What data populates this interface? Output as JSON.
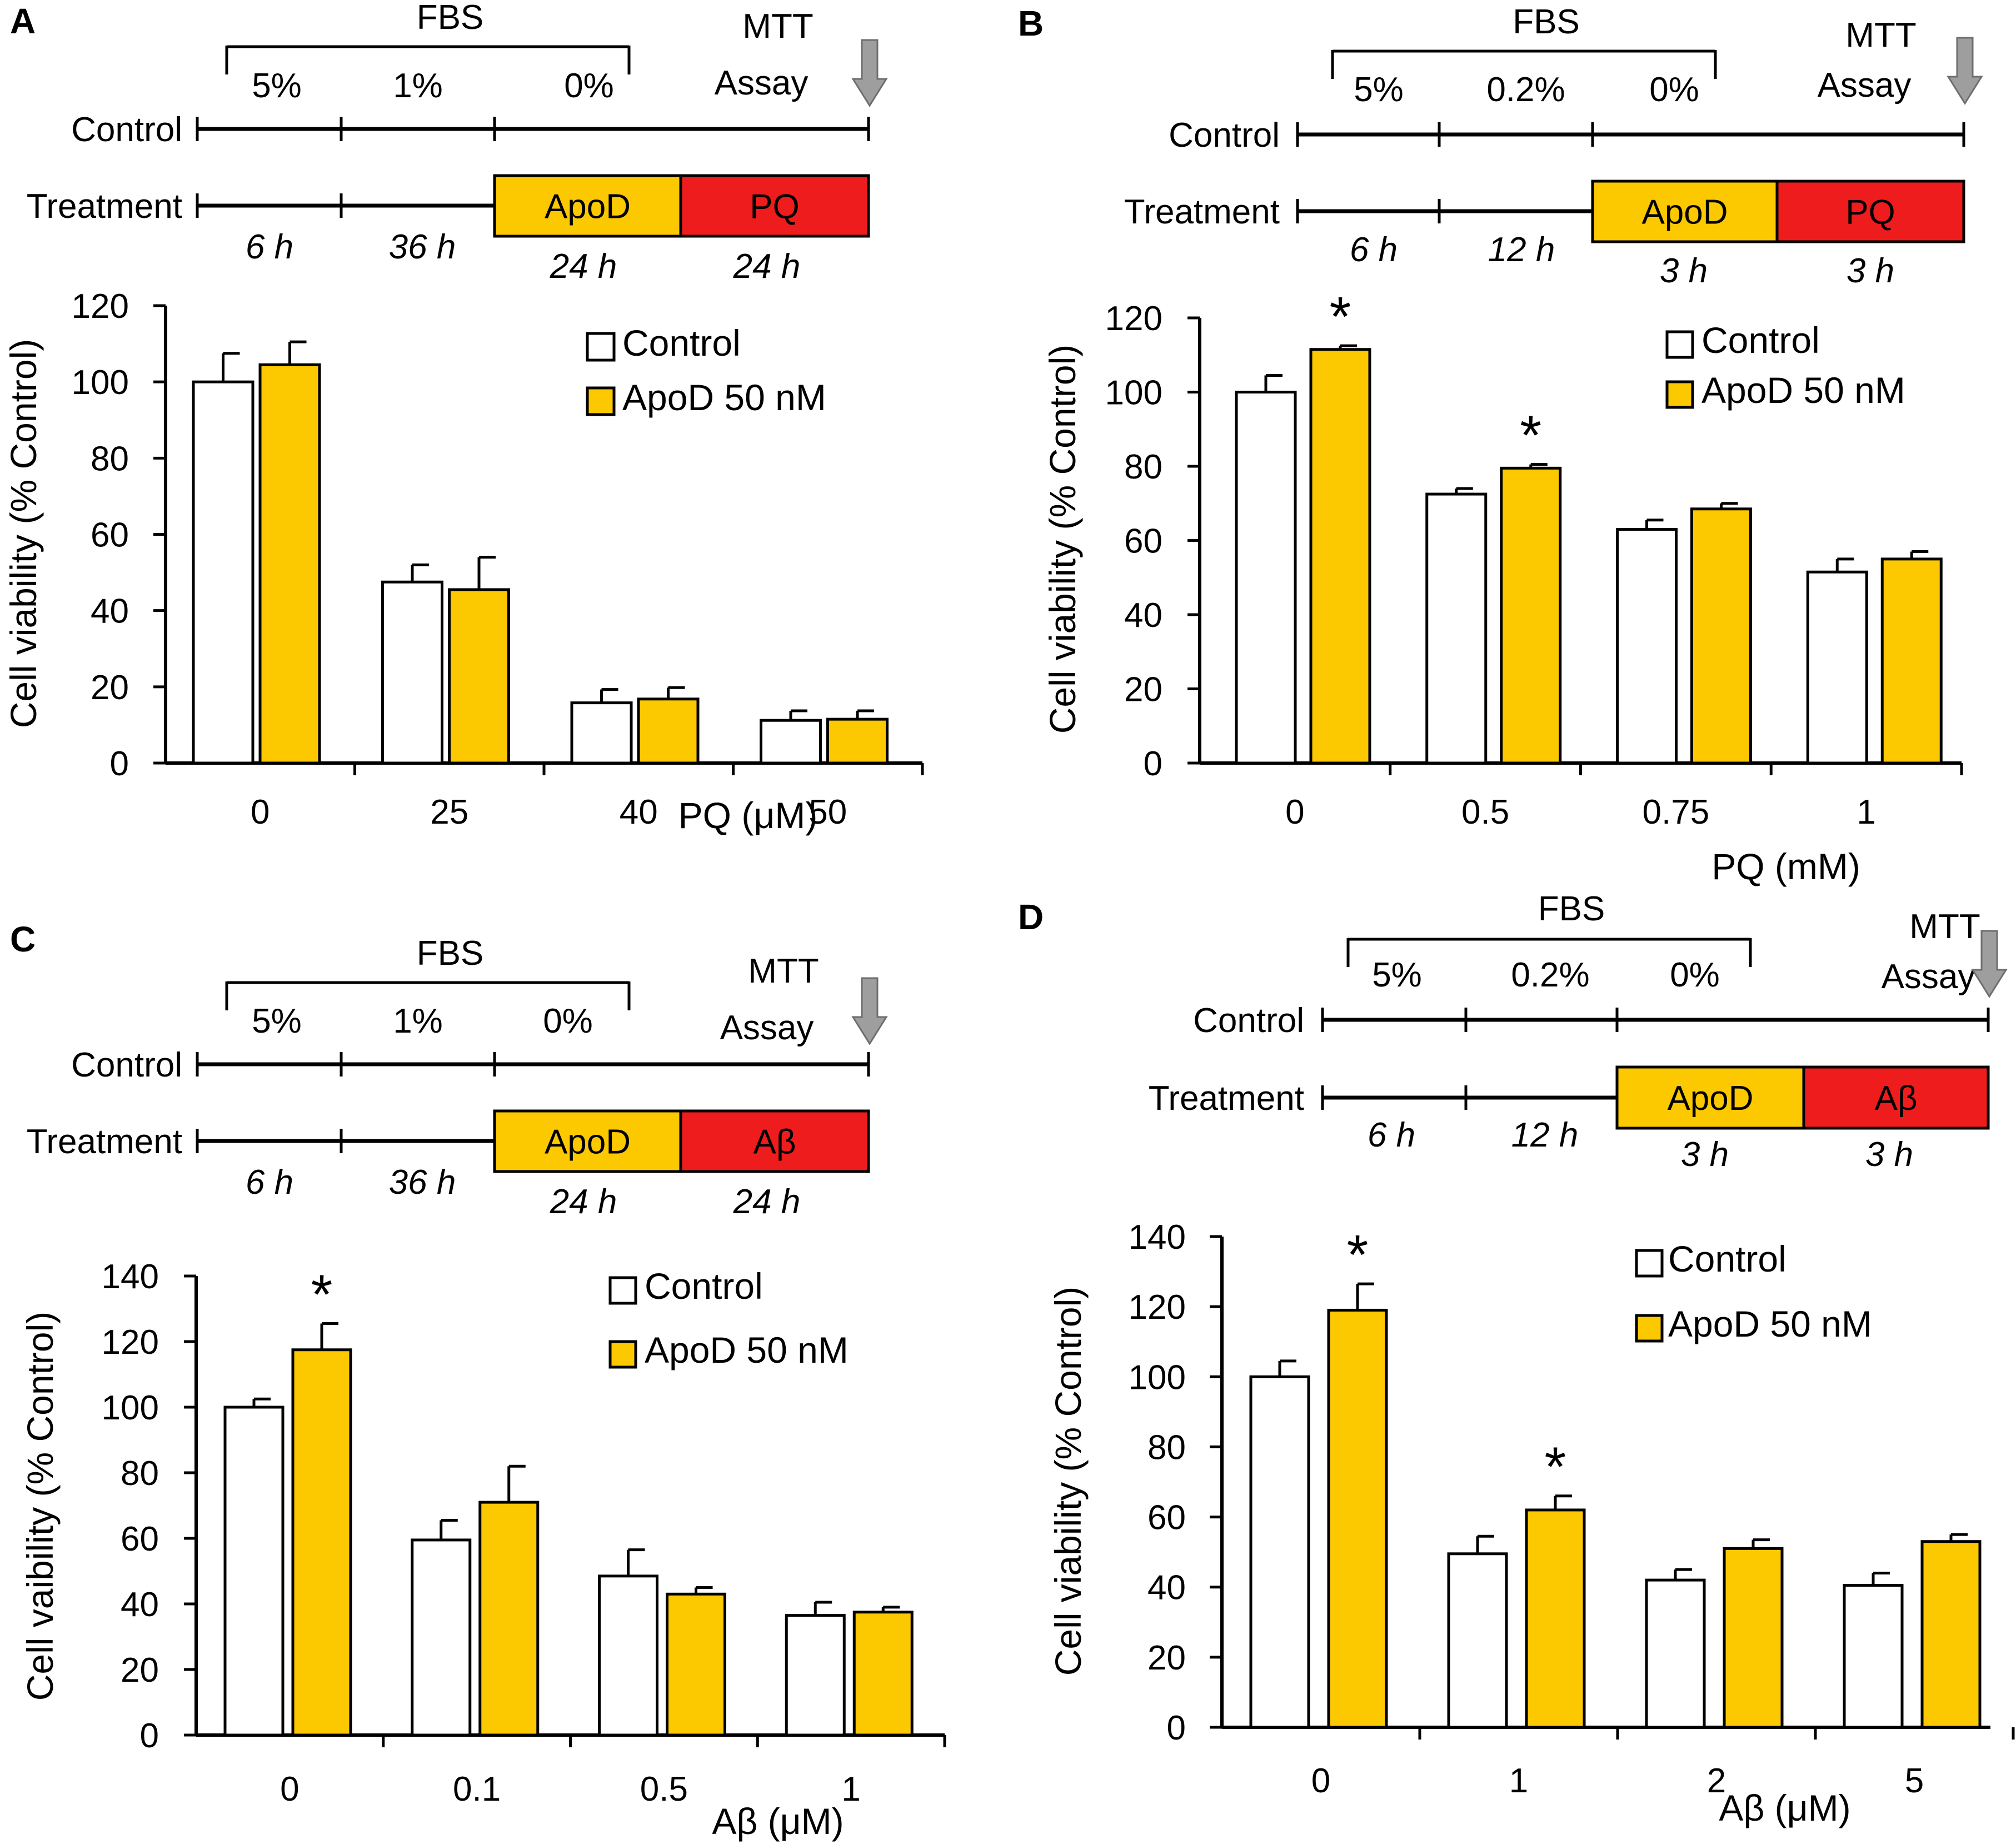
{
  "colors": {
    "control": "#ffffff",
    "apod": "#fcc800",
    "stressor": "#ee1c1c",
    "arrow": "#9e9e9e",
    "line": "#000000"
  },
  "panels": [
    {
      "letter": "A",
      "timeline": {
        "fbs_label": "FBS",
        "fbs_percents": [
          "5%",
          "1%",
          "0%"
        ],
        "mtt_label": [
          "MTT",
          "Assay"
        ],
        "control_label": "Control",
        "treatment_label": "Treatment",
        "box1_label": "ApoD",
        "box2_label": "PQ",
        "durations_below": [
          "6 h",
          "36 h"
        ],
        "box_durations": [
          "24 h",
          "24 h"
        ]
      },
      "chart_data": {
        "type": "bar",
        "categories": [
          "0",
          "25",
          "40",
          "50"
        ],
        "series": [
          {
            "name": "Control",
            "values": [
              100,
              47.5,
              15.8,
              11.2
            ],
            "errors": [
              7.5,
              4.5,
              3.5,
              2.5
            ]
          },
          {
            "name": "ApoD 50 nM",
            "values": [
              104.5,
              45.5,
              16.8,
              11.5
            ],
            "errors": [
              6,
              8.5,
              3,
              2.2
            ]
          }
        ],
        "significant": [
          [
            false,
            false,
            false,
            false
          ],
          [
            false,
            false,
            false,
            false
          ]
        ],
        "xlabel": "PQ (μM)",
        "ylabel": "Cell viability (% Control)",
        "ylim": [
          0,
          120
        ],
        "yticks": [
          0,
          20,
          40,
          60,
          80,
          100,
          120
        ],
        "star": "*"
      }
    },
    {
      "letter": "B",
      "timeline": {
        "fbs_label": "FBS",
        "fbs_percents": [
          "5%",
          "0.2%",
          "0%"
        ],
        "mtt_label": [
          "MTT",
          "Assay"
        ],
        "control_label": "Control",
        "treatment_label": "Treatment",
        "box1_label": "ApoD",
        "box2_label": "PQ",
        "durations_below": [
          "6 h",
          "12 h"
        ],
        "box_durations": [
          "3 h",
          "3 h"
        ]
      },
      "chart_data": {
        "type": "bar",
        "categories": [
          "0",
          "0.5",
          "0.75",
          "1"
        ],
        "series": [
          {
            "name": "Control",
            "values": [
              100,
              72.5,
              63,
              51.5
            ],
            "errors": [
              4.5,
              1.5,
              2.5,
              3.5
            ]
          },
          {
            "name": "ApoD 50 nM",
            "values": [
              111.5,
              79.5,
              68.5,
              55
            ],
            "errors": [
              1,
              1,
              1.5,
              2
            ]
          }
        ],
        "significant": [
          [
            false,
            false,
            false,
            false
          ],
          [
            true,
            true,
            false,
            false
          ]
        ],
        "xlabel": "PQ (mM)",
        "ylabel": "Cell viability (% Control)",
        "ylim": [
          0,
          120
        ],
        "yticks": [
          0,
          20,
          40,
          60,
          80,
          100,
          120
        ],
        "star": "*"
      }
    },
    {
      "letter": "C",
      "timeline": {
        "fbs_label": "FBS",
        "fbs_percents": [
          "5%",
          "1%",
          "0%"
        ],
        "mtt_label": [
          "MTT",
          "Assay"
        ],
        "control_label": "Control",
        "treatment_label": "Treatment",
        "box1_label": "ApoD",
        "box2_label": "Aβ",
        "durations_below": [
          "6 h",
          "36 h"
        ],
        "box_durations": [
          "24 h",
          "24 h"
        ]
      },
      "chart_data": {
        "type": "bar",
        "categories": [
          "0",
          "0.1",
          "0.5",
          "1"
        ],
        "series": [
          {
            "name": "Control",
            "values": [
              100,
              59.5,
              48.5,
              36.5
            ],
            "errors": [
              2.5,
              6,
              8,
              4
            ]
          },
          {
            "name": "ApoD 50 nM",
            "values": [
              117.5,
              71,
              43,
              37.5
            ],
            "errors": [
              8,
              11,
              2,
              1.5
            ]
          }
        ],
        "significant": [
          [
            false,
            false,
            false,
            false
          ],
          [
            true,
            false,
            false,
            false
          ]
        ],
        "xlabel": "Aβ (μM)",
        "ylabel": "Cell vaibility (% Control)",
        "ylim": [
          0,
          140
        ],
        "yticks": [
          0,
          20,
          40,
          60,
          80,
          100,
          120,
          140
        ],
        "star": "*"
      }
    },
    {
      "letter": "D",
      "timeline": {
        "fbs_label": "FBS",
        "fbs_percents": [
          "5%",
          "0.2%",
          "0%"
        ],
        "mtt_label": [
          "MTT",
          "Assay"
        ],
        "control_label": "Control",
        "treatment_label": "Treatment",
        "box1_label": "ApoD",
        "box2_label": "Aβ",
        "durations_below": [
          "6 h",
          "12 h"
        ],
        "box_durations": [
          "3 h",
          "3 h"
        ]
      },
      "chart_data": {
        "type": "bar",
        "categories": [
          "0",
          "1",
          "2",
          "5"
        ],
        "series": [
          {
            "name": "Control",
            "values": [
              100,
              49.5,
              42,
              40.5
            ],
            "errors": [
              4.5,
              5,
              3,
              3.5
            ]
          },
          {
            "name": "ApoD 50 nM",
            "values": [
              119,
              62,
              51,
              53
            ],
            "errors": [
              7.5,
              4,
              2.5,
              2
            ]
          }
        ],
        "significant": [
          [
            false,
            false,
            false,
            false
          ],
          [
            true,
            true,
            false,
            false
          ]
        ],
        "xlabel": "Aβ (μM)",
        "ylabel": "Cell viability (% Control)",
        "ylim": [
          0,
          140
        ],
        "yticks": [
          0,
          20,
          40,
          60,
          80,
          100,
          120,
          140
        ],
        "star": "*"
      }
    }
  ]
}
